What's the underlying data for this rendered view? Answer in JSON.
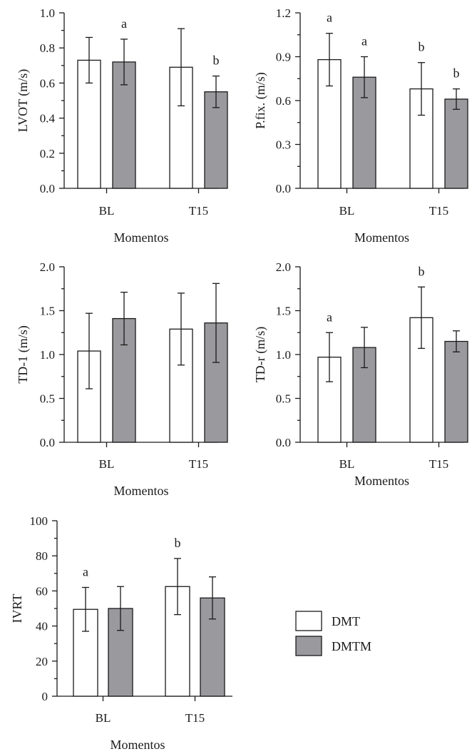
{
  "colors": {
    "DMT": "#ffffff",
    "DMTM": "#9a9a9e",
    "axis": "#1a1a1a"
  },
  "legend": {
    "items": [
      {
        "name": "DMT",
        "color": "#ffffff"
      },
      {
        "name": "DMTM",
        "color": "#9a9a9e"
      }
    ]
  },
  "chart_data": [
    {
      "type": "bar",
      "ylabel": "LVOT (m/s)",
      "xlabel": "Momentos",
      "categories": [
        "BL",
        "T15"
      ],
      "ylim": [
        0,
        1.0
      ],
      "yticks": [
        "0.0",
        "0.2",
        "0.4",
        "0.6",
        "0.8",
        "1.0"
      ],
      "series": [
        {
          "name": "DMT",
          "values": [
            0.73,
            0.69
          ],
          "err": [
            0.13,
            0.22
          ],
          "letters": [
            "",
            ""
          ]
        },
        {
          "name": "DMTM",
          "values": [
            0.72,
            0.55
          ],
          "err": [
            0.13,
            0.09
          ],
          "letters": [
            "a",
            "b"
          ]
        }
      ]
    },
    {
      "type": "bar",
      "ylabel": "P.fix. (m/s)",
      "xlabel": "Momentos",
      "categories": [
        "BL",
        "T15"
      ],
      "ylim": [
        0,
        1.2
      ],
      "yticks": [
        "0.0",
        "0.3",
        "0.6",
        "0.9",
        "1.2"
      ],
      "series": [
        {
          "name": "DMT",
          "values": [
            0.88,
            0.68
          ],
          "err": [
            0.18,
            0.18
          ],
          "letters": [
            "a",
            "b"
          ]
        },
        {
          "name": "DMTM",
          "values": [
            0.76,
            0.61
          ],
          "err": [
            0.14,
            0.07
          ],
          "letters": [
            "a",
            "b"
          ]
        }
      ]
    },
    {
      "type": "bar",
      "ylabel": "TD-1 (m/s)",
      "xlabel": "Momentos",
      "categories": [
        "BL",
        "T15"
      ],
      "ylim": [
        0,
        2.0
      ],
      "yticks": [
        "0.0",
        "0.5",
        "1.0",
        "1.5",
        "2.0"
      ],
      "series": [
        {
          "name": "DMT",
          "values": [
            1.04,
            1.29
          ],
          "err": [
            0.43,
            0.41
          ],
          "letters": [
            "",
            ""
          ]
        },
        {
          "name": "DMTM",
          "values": [
            1.41,
            1.36
          ],
          "err": [
            0.3,
            0.45
          ],
          "letters": [
            "",
            ""
          ]
        }
      ]
    },
    {
      "type": "bar",
      "ylabel": "TD-r (m/s)",
      "xlabel": "Momentos",
      "categories": [
        "BL",
        "T15"
      ],
      "ylim": [
        0,
        2.0
      ],
      "yticks": [
        "0.0",
        "0.5",
        "1.0",
        "1.5",
        "2.0"
      ],
      "series": [
        {
          "name": "DMT",
          "values": [
            0.97,
            1.42
          ],
          "err": [
            0.28,
            0.35
          ],
          "letters": [
            "a",
            "b"
          ]
        },
        {
          "name": "DMTM",
          "values": [
            1.08,
            1.15
          ],
          "err": [
            0.23,
            0.12
          ],
          "letters": [
            "",
            ""
          ]
        }
      ]
    },
    {
      "type": "bar",
      "ylabel": "IVRT",
      "xlabel": "Momentos",
      "categories": [
        "BL",
        "T15"
      ],
      "ylim": [
        0,
        100
      ],
      "yticks": [
        "0",
        "20",
        "40",
        "60",
        "80",
        "100"
      ],
      "series": [
        {
          "name": "DMT",
          "values": [
            49.5,
            62.5
          ],
          "err": [
            12.5,
            16
          ],
          "letters": [
            "a",
            "b"
          ]
        },
        {
          "name": "DMTM",
          "values": [
            50,
            56
          ],
          "err": [
            12.5,
            12
          ],
          "letters": [
            "",
            ""
          ]
        }
      ]
    }
  ]
}
